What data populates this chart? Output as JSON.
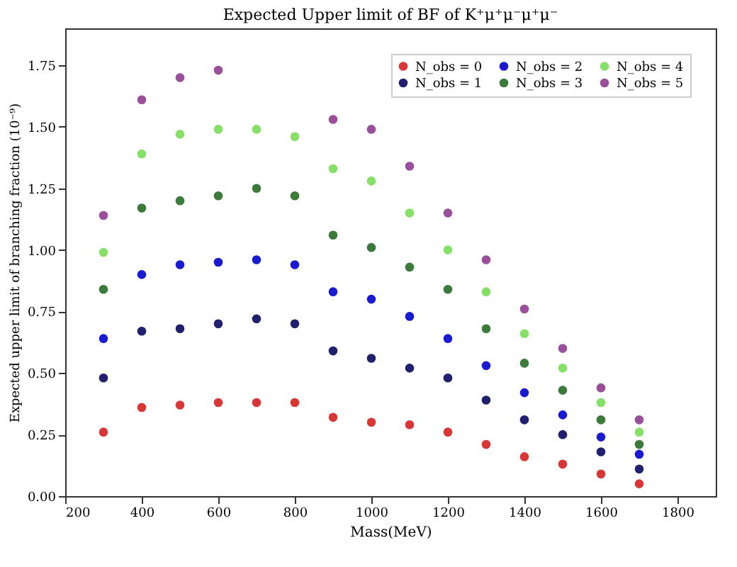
{
  "chart_data": {
    "type": "scatter",
    "title": "Expected Upper limit of BF of K⁺μ⁺μ⁻μ⁺μ⁻",
    "xlabel": "Mass(MeV)",
    "ylabel": "Expected upper limit of branching fraction (10⁻⁹)",
    "x": [
      300,
      400,
      500,
      600,
      700,
      800,
      900,
      1000,
      1100,
      1200,
      1300,
      1400,
      1500,
      1600,
      1700
    ],
    "series": [
      {
        "name": "N_obs = 0",
        "color": "#d93636",
        "values": [
          0.26,
          0.36,
          0.37,
          0.38,
          0.38,
          0.38,
          0.32,
          0.3,
          0.29,
          0.26,
          0.21,
          0.16,
          0.13,
          0.09,
          0.05
        ]
      },
      {
        "name": "N_obs = 1",
        "color": "#20206e",
        "values": [
          0.48,
          0.67,
          0.68,
          0.7,
          0.72,
          0.7,
          0.59,
          0.56,
          0.52,
          0.48,
          0.39,
          0.31,
          0.25,
          0.18,
          0.11
        ]
      },
      {
        "name": "N_obs = 2",
        "color": "#1a1ad0",
        "values": [
          0.64,
          0.9,
          0.94,
          0.95,
          0.96,
          0.94,
          0.83,
          0.8,
          0.73,
          0.64,
          0.53,
          0.42,
          0.33,
          0.24,
          0.17
        ]
      },
      {
        "name": "N_obs = 3",
        "color": "#3c7a3c",
        "values": [
          0.84,
          1.17,
          1.2,
          1.22,
          1.25,
          1.22,
          1.06,
          1.01,
          0.93,
          0.84,
          0.68,
          0.54,
          0.43,
          0.31,
          0.21
        ]
      },
      {
        "name": "N_obs = 4",
        "color": "#86e068",
        "values": [
          0.99,
          1.39,
          1.47,
          1.49,
          1.49,
          1.46,
          1.33,
          1.28,
          1.15,
          1.0,
          0.83,
          0.66,
          0.52,
          0.38,
          0.26
        ]
      },
      {
        "name": "N_obs = 5",
        "color": "#9a4f9a",
        "values": [
          1.14,
          1.61,
          1.7,
          1.73,
          null,
          null,
          1.53,
          1.49,
          1.34,
          1.15,
          0.96,
          0.76,
          0.6,
          0.44,
          0.31
        ]
      }
    ],
    "xlim": [
      200,
      1900
    ],
    "xticks": [
      200,
      400,
      600,
      800,
      1000,
      1200,
      1400,
      1600,
      1800
    ],
    "ylim": [
      0,
      1.9
    ],
    "yticks": [
      {
        "value": 0,
        "label": "0.00"
      },
      {
        "value": 0.25,
        "label": "0.25"
      },
      {
        "value": 0.5,
        "label": "0.50"
      },
      {
        "value": 0.75,
        "label": "0.75"
      },
      {
        "value": 1,
        "label": "1.00"
      },
      {
        "value": 1.25,
        "label": "1.25"
      },
      {
        "value": 1.5,
        "label": "1.50"
      },
      {
        "value": 1.75,
        "label": "1.75"
      }
    ],
    "grid": false,
    "legend": "top right",
    "marker": "circle"
  }
}
